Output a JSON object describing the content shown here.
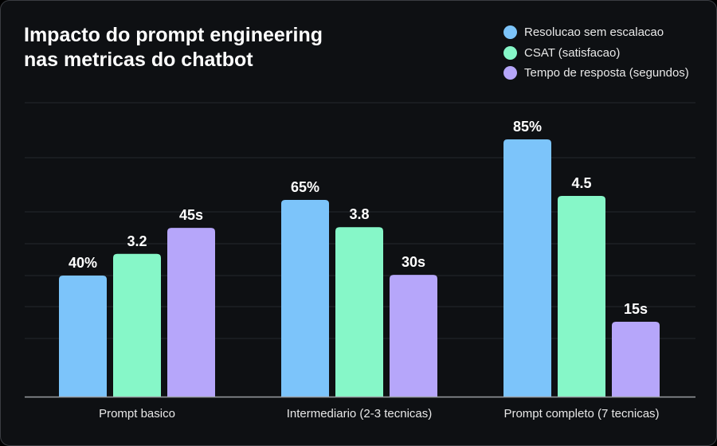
{
  "chart_data": {
    "type": "bar",
    "title": "Impacto do prompt engineering nas metricas do chatbot",
    "title_lines": [
      "Impacto do prompt engineering",
      "nas metricas do chatbot"
    ],
    "categories": [
      "Prompt basico",
      "Intermediario (2-3 tecnicas)",
      "Prompt completo (7 tecnicas)"
    ],
    "series": [
      {
        "name": "Resolucao sem escalacao",
        "values": [
          40,
          65,
          85
        ],
        "labels": [
          "40%",
          "65%",
          "85%"
        ],
        "color": "#7cc4fa"
      },
      {
        "name": "CSAT (satisfacao)",
        "values": [
          3.2,
          3.8,
          4.5
        ],
        "labels": [
          "3.2",
          "3.8",
          "4.5"
        ],
        "color": "#86f7c8"
      },
      {
        "name": "Tempo de resposta (segundos)",
        "values": [
          45,
          30,
          15
        ],
        "labels": [
          "45s",
          "30s",
          "15s"
        ],
        "color": "#b6a6fa"
      }
    ],
    "legend_position": "top-right",
    "grid": true,
    "xlabel": "",
    "ylabel": "",
    "background": "#0e1013"
  }
}
